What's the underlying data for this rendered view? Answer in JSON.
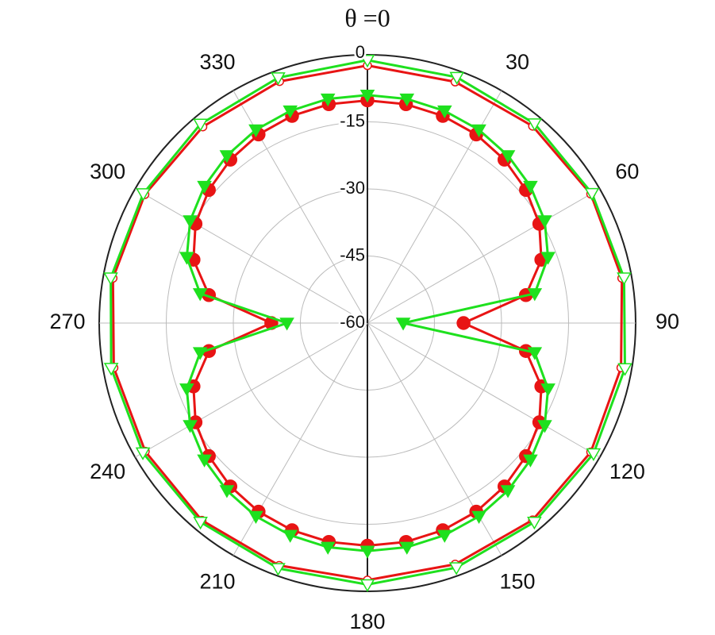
{
  "chart_data": {
    "type": "polar",
    "title": "θ =0",
    "rlim": [
      -60,
      0
    ],
    "rticks": [
      0,
      -15,
      -30,
      -45,
      -60
    ],
    "thetaticks": [
      30,
      60,
      90,
      120,
      150,
      180,
      210,
      240,
      270,
      300,
      330
    ],
    "grid": true,
    "series": [
      {
        "color": "#e81414",
        "marker": "filled-circle",
        "theta": [
          0,
          10,
          20,
          30,
          40,
          50,
          60,
          70,
          80,
          90,
          100,
          110,
          120,
          130,
          140,
          150,
          160,
          170,
          180,
          190,
          200,
          210,
          220,
          230,
          240,
          250,
          260,
          270,
          280,
          290,
          300,
          310,
          320,
          330,
          340,
          350
        ],
        "values": [
          -10.2,
          -10.3,
          -10.7,
          -11.3,
          -12.3,
          -13.7,
          -15.6,
          -18.6,
          -24,
          -38.5,
          -24,
          -18.6,
          -15.6,
          -13.7,
          -12.3,
          -11.3,
          -10.7,
          -10.3,
          -10.2,
          -10.3,
          -10.7,
          -11.3,
          -12.3,
          -13.7,
          -15.6,
          -18.6,
          -24,
          -38.5,
          -24,
          -18.6,
          -15.6,
          -13.7,
          -12.3,
          -11.3,
          -10.7,
          -10.3
        ]
      },
      {
        "color": "#1ee01e",
        "marker": "filled-triangle",
        "theta": [
          0,
          10,
          20,
          30,
          40,
          50,
          60,
          70,
          80,
          90,
          100,
          110,
          120,
          130,
          140,
          150,
          160,
          170,
          180,
          190,
          200,
          210,
          220,
          230,
          240,
          250,
          260,
          270,
          280,
          290,
          300,
          310,
          320,
          330,
          340,
          350
        ],
        "values": [
          -9,
          -9.1,
          -9.5,
          -10.1,
          -11.1,
          -12.4,
          -14.2,
          -17,
          -22,
          -52,
          -22,
          -17,
          -14.2,
          -12.4,
          -11.1,
          -10.1,
          -9.5,
          -9.1,
          -9,
          -9.1,
          -9.5,
          -10.1,
          -11.1,
          -12.4,
          -14.2,
          -17,
          -22,
          -42,
          -22,
          -17,
          -14.2,
          -12.4,
          -11.1,
          -10.1,
          -9.5,
          -9.1
        ]
      },
      {
        "color": "#e81414",
        "marker": "open-circle",
        "theta": [
          0,
          20,
          40,
          60,
          80,
          100,
          120,
          140,
          160,
          180,
          200,
          220,
          240,
          260,
          280,
          300,
          320,
          340
        ],
        "values": [
          -2.4,
          -2.6,
          -2.5,
          -2.3,
          -2.2,
          -2.4,
          -2.3,
          -2.5,
          -2.6,
          -2.5,
          -2.3,
          -2.4,
          -2.6,
          -2.4,
          -2.2,
          -2.5,
          -2.7,
          -2.5
        ]
      },
      {
        "color": "#1ee01e",
        "marker": "open-triangle",
        "theta": [
          0,
          20,
          40,
          60,
          80,
          100,
          120,
          140,
          160,
          180,
          200,
          220,
          240,
          260,
          280,
          300,
          320,
          340
        ],
        "values": [
          -1.2,
          -1.5,
          -1.8,
          -2,
          -1.7,
          -1.5,
          -1.6,
          -1.9,
          -1.8,
          -1.5,
          -1.6,
          -1.9,
          -2,
          -1.8,
          -1.7,
          -2.1,
          -1.9,
          -1.6
        ]
      }
    ]
  }
}
